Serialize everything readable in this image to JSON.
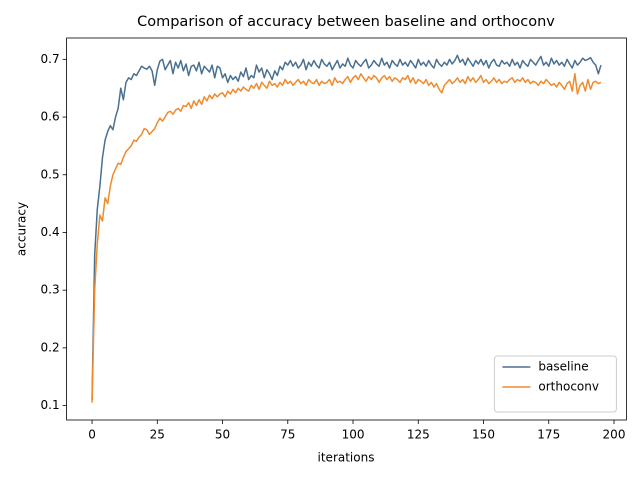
{
  "chart_data": {
    "type": "line",
    "title": "Comparison of accuracy between baseline and orthoconv",
    "x_label": "iterations",
    "y_label": "accuracy",
    "x": [
      0,
      1,
      2,
      3,
      4,
      5,
      6,
      7,
      8,
      9,
      10,
      11,
      12,
      13,
      14,
      15,
      16,
      17,
      18,
      19,
      20,
      21,
      22,
      23,
      24,
      25,
      26,
      27,
      28,
      29,
      30,
      31,
      32,
      33,
      34,
      35,
      36,
      37,
      38,
      39,
      40,
      41,
      42,
      43,
      44,
      45,
      46,
      47,
      48,
      49,
      50,
      51,
      52,
      53,
      54,
      55,
      56,
      57,
      58,
      59,
      60,
      61,
      62,
      63,
      64,
      65,
      66,
      67,
      68,
      69,
      70,
      71,
      72,
      73,
      74,
      75,
      76,
      77,
      78,
      79,
      80,
      81,
      82,
      83,
      84,
      85,
      86,
      87,
      88,
      89,
      90,
      91,
      92,
      93,
      94,
      95,
      96,
      97,
      98,
      99,
      100,
      101,
      102,
      103,
      104,
      105,
      106,
      107,
      108,
      109,
      110,
      111,
      112,
      113,
      114,
      115,
      116,
      117,
      118,
      119,
      120,
      121,
      122,
      123,
      124,
      125,
      126,
      127,
      128,
      129,
      130,
      131,
      132,
      133,
      134,
      135,
      136,
      137,
      138,
      139,
      140,
      141,
      142,
      143,
      144,
      145,
      146,
      147,
      148,
      149,
      150,
      151,
      152,
      153,
      154,
      155,
      156,
      157,
      158,
      159,
      160,
      161,
      162,
      163,
      164,
      165,
      166,
      167,
      168,
      169,
      170,
      171,
      172,
      173,
      174,
      175,
      176,
      177,
      178,
      179,
      180,
      181,
      182,
      183,
      184,
      185,
      186,
      187,
      188,
      189,
      190,
      191,
      192,
      193,
      194,
      195
    ],
    "series": [
      {
        "name": "baseline",
        "color": "#4a7090",
        "values": [
          0.11,
          0.36,
          0.44,
          0.48,
          0.53,
          0.56,
          0.575,
          0.585,
          0.578,
          0.6,
          0.615,
          0.65,
          0.63,
          0.66,
          0.668,
          0.665,
          0.675,
          0.672,
          0.68,
          0.688,
          0.685,
          0.683,
          0.688,
          0.68,
          0.655,
          0.682,
          0.697,
          0.7,
          0.682,
          0.69,
          0.698,
          0.675,
          0.695,
          0.685,
          0.698,
          0.68,
          0.692,
          0.672,
          0.688,
          0.69,
          0.68,
          0.695,
          0.675,
          0.688,
          0.683,
          0.678,
          0.69,
          0.668,
          0.688,
          0.685,
          0.668,
          0.675,
          0.66,
          0.672,
          0.665,
          0.67,
          0.662,
          0.678,
          0.67,
          0.685,
          0.665,
          0.672,
          0.668,
          0.69,
          0.678,
          0.685,
          0.668,
          0.682,
          0.675,
          0.665,
          0.68,
          0.672,
          0.688,
          0.682,
          0.695,
          0.69,
          0.698,
          0.688,
          0.695,
          0.685,
          0.69,
          0.7,
          0.682,
          0.695,
          0.688,
          0.698,
          0.69,
          0.685,
          0.7,
          0.692,
          0.688,
          0.695,
          0.682,
          0.69,
          0.698,
          0.685,
          0.692,
          0.688,
          0.702,
          0.69,
          0.685,
          0.698,
          0.692,
          0.688,
          0.695,
          0.7,
          0.685,
          0.69,
          0.698,
          0.692,
          0.688,
          0.702,
          0.69,
          0.695,
          0.685,
          0.698,
          0.692,
          0.688,
          0.7,
          0.69,
          0.695,
          0.688,
          0.698,
          0.692,
          0.685,
          0.7,
          0.69,
          0.695,
          0.688,
          0.698,
          0.69,
          0.685,
          0.7,
          0.692,
          0.688,
          0.695,
          0.69,
          0.7,
          0.692,
          0.698,
          0.707,
          0.695,
          0.7,
          0.69,
          0.702,
          0.695,
          0.688,
          0.698,
          0.692,
          0.7,
          0.69,
          0.698,
          0.685,
          0.695,
          0.7,
          0.69,
          0.688,
          0.698,
          0.692,
          0.695,
          0.688,
          0.7,
          0.69,
          0.695,
          0.685,
          0.698,
          0.692,
          0.688,
          0.7,
          0.695,
          0.69,
          0.698,
          0.705,
          0.69,
          0.695,
          0.688,
          0.702,
          0.692,
          0.698,
          0.69,
          0.695,
          0.688,
          0.7,
          0.692,
          0.685,
          0.698,
          0.69,
          0.695,
          0.702,
          0.698,
          0.7,
          0.703,
          0.695,
          0.69,
          0.675,
          0.69
        ]
      },
      {
        "name": "orthoconv",
        "color": "#f08a2c",
        "values": [
          0.105,
          0.3,
          0.38,
          0.43,
          0.42,
          0.46,
          0.45,
          0.48,
          0.5,
          0.51,
          0.52,
          0.518,
          0.53,
          0.54,
          0.545,
          0.55,
          0.56,
          0.558,
          0.565,
          0.57,
          0.58,
          0.578,
          0.57,
          0.575,
          0.58,
          0.59,
          0.598,
          0.593,
          0.6,
          0.608,
          0.61,
          0.605,
          0.612,
          0.615,
          0.61,
          0.62,
          0.618,
          0.625,
          0.615,
          0.628,
          0.62,
          0.63,
          0.622,
          0.635,
          0.628,
          0.638,
          0.632,
          0.64,
          0.635,
          0.64,
          0.642,
          0.635,
          0.645,
          0.64,
          0.648,
          0.642,
          0.65,
          0.645,
          0.652,
          0.648,
          0.645,
          0.655,
          0.65,
          0.658,
          0.648,
          0.66,
          0.655,
          0.65,
          0.662,
          0.655,
          0.658,
          0.652,
          0.66,
          0.655,
          0.665,
          0.658,
          0.662,
          0.655,
          0.66,
          0.665,
          0.658,
          0.662,
          0.655,
          0.665,
          0.66,
          0.658,
          0.665,
          0.655,
          0.662,
          0.658,
          0.66,
          0.665,
          0.655,
          0.668,
          0.66,
          0.662,
          0.658,
          0.665,
          0.67,
          0.66,
          0.668,
          0.672,
          0.665,
          0.675,
          0.668,
          0.662,
          0.67,
          0.665,
          0.672,
          0.668,
          0.66,
          0.668,
          0.672,
          0.665,
          0.67,
          0.662,
          0.668,
          0.665,
          0.66,
          0.668,
          0.665,
          0.672,
          0.66,
          0.668,
          0.658,
          0.665,
          0.662,
          0.658,
          0.665,
          0.655,
          0.66,
          0.652,
          0.658,
          0.648,
          0.642,
          0.655,
          0.66,
          0.665,
          0.658,
          0.662,
          0.668,
          0.66,
          0.665,
          0.658,
          0.67,
          0.662,
          0.668,
          0.66,
          0.665,
          0.672,
          0.66,
          0.665,
          0.658,
          0.662,
          0.668,
          0.66,
          0.665,
          0.658,
          0.662,
          0.66,
          0.665,
          0.668,
          0.66,
          0.665,
          0.662,
          0.668,
          0.66,
          0.665,
          0.658,
          0.662,
          0.66,
          0.655,
          0.662,
          0.658,
          0.665,
          0.66,
          0.655,
          0.658,
          0.652,
          0.66,
          0.655,
          0.648,
          0.658,
          0.662,
          0.645,
          0.675,
          0.64,
          0.655,
          0.66,
          0.645,
          0.665,
          0.648,
          0.66,
          0.662,
          0.658,
          0.66
        ]
      }
    ],
    "xlim": [
      -9.75,
      204.75
    ],
    "xticks": [
      0,
      25,
      50,
      75,
      100,
      125,
      150,
      175,
      200
    ],
    "ylim": [
      0.075,
      0.737
    ],
    "yticks": [
      0.1,
      0.2,
      0.3,
      0.4,
      0.5,
      0.6,
      0.7
    ],
    "legend": "lower right"
  }
}
